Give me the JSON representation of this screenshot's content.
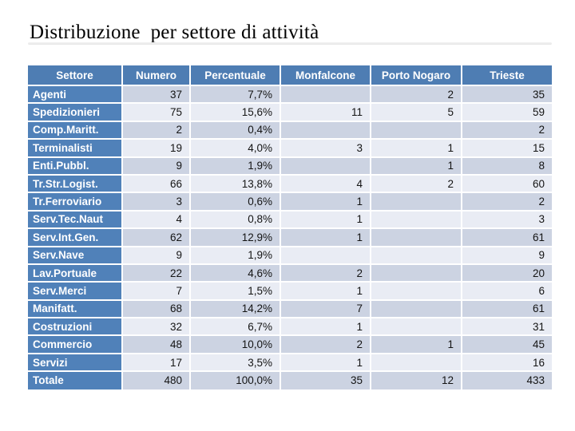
{
  "page": {
    "title": "Distribuzione  per settore di attività"
  },
  "colors": {
    "header_bg": "#4e7db3",
    "label_bg": "#5081b9",
    "band_dark": "#ccd3e2",
    "band_light": "#e9ecf4",
    "header_text": "#ffffff",
    "cell_text": "#141414",
    "grid": "#ffffff"
  },
  "table": {
    "columns": [
      "Settore",
      "Numero",
      "Percentuale",
      "Monfalcone",
      "Porto Nogaro",
      "Trieste"
    ],
    "column_keys": [
      "settore",
      "numero",
      "percentuale",
      "monfalcone",
      "porto-nogaro",
      "trieste"
    ],
    "rows": [
      [
        "Agenti",
        "37",
        "7,7%",
        "",
        "2",
        "35"
      ],
      [
        "Spedizionieri",
        "75",
        "15,6%",
        "11",
        "5",
        "59"
      ],
      [
        "Comp.Maritt.",
        "2",
        "0,4%",
        "",
        "",
        "2"
      ],
      [
        "Terminalisti",
        "19",
        "4,0%",
        "3",
        "1",
        "15"
      ],
      [
        "Enti.Pubbl.",
        "9",
        "1,9%",
        "",
        "1",
        "8"
      ],
      [
        "Tr.Str.Logist.",
        "66",
        "13,8%",
        "4",
        "2",
        "60"
      ],
      [
        "Tr.Ferroviario",
        "3",
        "0,6%",
        "1",
        "",
        "2"
      ],
      [
        "Serv.Tec.Naut",
        "4",
        "0,8%",
        "1",
        "",
        "3"
      ],
      [
        "Serv.Int.Gen.",
        "62",
        "12,9%",
        "1",
        "",
        "61"
      ],
      [
        "Serv.Nave",
        "9",
        "1,9%",
        "",
        "",
        "9"
      ],
      [
        "Lav.Portuale",
        "22",
        "4,6%",
        "2",
        "",
        "20"
      ],
      [
        "Serv.Merci",
        "7",
        "1,5%",
        "1",
        "",
        "6"
      ],
      [
        "Manifatt.",
        "68",
        "14,2%",
        "7",
        "",
        "61"
      ],
      [
        "Costruzioni",
        "32",
        "6,7%",
        "1",
        "",
        "31"
      ],
      [
        "Commercio",
        "48",
        "10,0%",
        "2",
        "1",
        "45"
      ],
      [
        "Servizi",
        "17",
        "3,5%",
        "1",
        "",
        "16"
      ],
      [
        "Totale",
        "480",
        "100,0%",
        "35",
        "12",
        "433"
      ]
    ]
  },
  "chart_data": {
    "type": "table",
    "title": "Distribuzione per settore di attività",
    "columns": [
      "Settore",
      "Numero",
      "Percentuale",
      "Monfalcone",
      "Porto Nogaro",
      "Trieste"
    ],
    "rows": [
      {
        "settore": "Agenti",
        "numero": 37,
        "percentuale": "7,7%",
        "monfalcone": null,
        "porto_nogaro": 2,
        "trieste": 35
      },
      {
        "settore": "Spedizionieri",
        "numero": 75,
        "percentuale": "15,6%",
        "monfalcone": 11,
        "porto_nogaro": 5,
        "trieste": 59
      },
      {
        "settore": "Comp.Maritt.",
        "numero": 2,
        "percentuale": "0,4%",
        "monfalcone": null,
        "porto_nogaro": null,
        "trieste": 2
      },
      {
        "settore": "Terminalisti",
        "numero": 19,
        "percentuale": "4,0%",
        "monfalcone": 3,
        "porto_nogaro": 1,
        "trieste": 15
      },
      {
        "settore": "Enti.Pubbl.",
        "numero": 9,
        "percentuale": "1,9%",
        "monfalcone": null,
        "porto_nogaro": 1,
        "trieste": 8
      },
      {
        "settore": "Tr.Str.Logist.",
        "numero": 66,
        "percentuale": "13,8%",
        "monfalcone": 4,
        "porto_nogaro": 2,
        "trieste": 60
      },
      {
        "settore": "Tr.Ferroviario",
        "numero": 3,
        "percentuale": "0,6%",
        "monfalcone": 1,
        "porto_nogaro": null,
        "trieste": 2
      },
      {
        "settore": "Serv.Tec.Naut",
        "numero": 4,
        "percentuale": "0,8%",
        "monfalcone": 1,
        "porto_nogaro": null,
        "trieste": 3
      },
      {
        "settore": "Serv.Int.Gen.",
        "numero": 62,
        "percentuale": "12,9%",
        "monfalcone": 1,
        "porto_nogaro": null,
        "trieste": 61
      },
      {
        "settore": "Serv.Nave",
        "numero": 9,
        "percentuale": "1,9%",
        "monfalcone": null,
        "porto_nogaro": null,
        "trieste": 9
      },
      {
        "settore": "Lav.Portuale",
        "numero": 22,
        "percentuale": "4,6%",
        "monfalcone": 2,
        "porto_nogaro": null,
        "trieste": 20
      },
      {
        "settore": "Serv.Merci",
        "numero": 7,
        "percentuale": "1,5%",
        "monfalcone": 1,
        "porto_nogaro": null,
        "trieste": 6
      },
      {
        "settore": "Manifatt.",
        "numero": 68,
        "percentuale": "14,2%",
        "monfalcone": 7,
        "porto_nogaro": null,
        "trieste": 61
      },
      {
        "settore": "Costruzioni",
        "numero": 32,
        "percentuale": "6,7%",
        "monfalcone": 1,
        "porto_nogaro": null,
        "trieste": 31
      },
      {
        "settore": "Commercio",
        "numero": 48,
        "percentuale": "10,0%",
        "monfalcone": 2,
        "porto_nogaro": 1,
        "trieste": 45
      },
      {
        "settore": "Servizi",
        "numero": 17,
        "percentuale": "3,5%",
        "monfalcone": 1,
        "porto_nogaro": null,
        "trieste": 16
      },
      {
        "settore": "Totale",
        "numero": 480,
        "percentuale": "100,0%",
        "monfalcone": 35,
        "porto_nogaro": 12,
        "trieste": 433
      }
    ],
    "layout": {
      "banded_rows": true,
      "header_fill": "#4e7db3",
      "label_column_fill": "#5081b9"
    }
  }
}
